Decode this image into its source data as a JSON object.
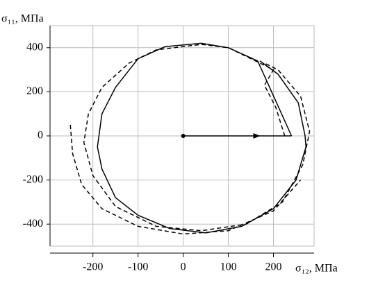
{
  "chart_data": {
    "type": "line",
    "y_label": "σ₁₁, МПа",
    "x_label": "σ₁₂, МПа",
    "xlim": [
      -295,
      290
    ],
    "ylim": [
      -500,
      500
    ],
    "xticks": [
      -200,
      -100,
      0,
      100,
      200
    ],
    "yticks": [
      -400,
      -200,
      0,
      200,
      400
    ],
    "grid": true,
    "series": [
      {
        "color": "#000000",
        "dashed": false,
        "x": [
          0,
          240
        ],
        "values": [
          0,
          0
        ]
      },
      {
        "color": "#000000",
        "dashed": false,
        "x": [
          240,
          165,
          100,
          40,
          -40,
          -100,
          -150,
          -180,
          -190,
          -180,
          -150,
          -100,
          -30,
          50,
          130,
          200,
          250,
          272,
          270,
          255,
          210,
          170
        ],
        "values": [
          0,
          340,
          400,
          420,
          405,
          350,
          220,
          100,
          -50,
          -150,
          -280,
          -360,
          -420,
          -440,
          -410,
          -330,
          -200,
          -50,
          0,
          150,
          280,
          340
        ]
      },
      {
        "color": "#000000",
        "dashed": true,
        "x": [
          225,
          205,
          180,
          200,
          100,
          40,
          -60,
          -120,
          -180,
          -210,
          -220,
          -200,
          -150,
          -60,
          40,
          140,
          220,
          265,
          280,
          260,
          210,
          180
        ],
        "values": [
          0,
          130,
          230,
          300,
          400,
          415,
          390,
          330,
          220,
          100,
          -30,
          -180,
          -320,
          -410,
          -430,
          -400,
          -300,
          -130,
          20,
          180,
          300,
          330
        ]
      },
      {
        "color": "#000000",
        "dashed": true,
        "x": [
          -250,
          -245,
          -225,
          -180,
          -100,
          0,
          100,
          200,
          260
        ],
        "values": [
          50,
          -80,
          -220,
          -330,
          -410,
          -445,
          -430,
          -340,
          -200
        ]
      }
    ]
  }
}
